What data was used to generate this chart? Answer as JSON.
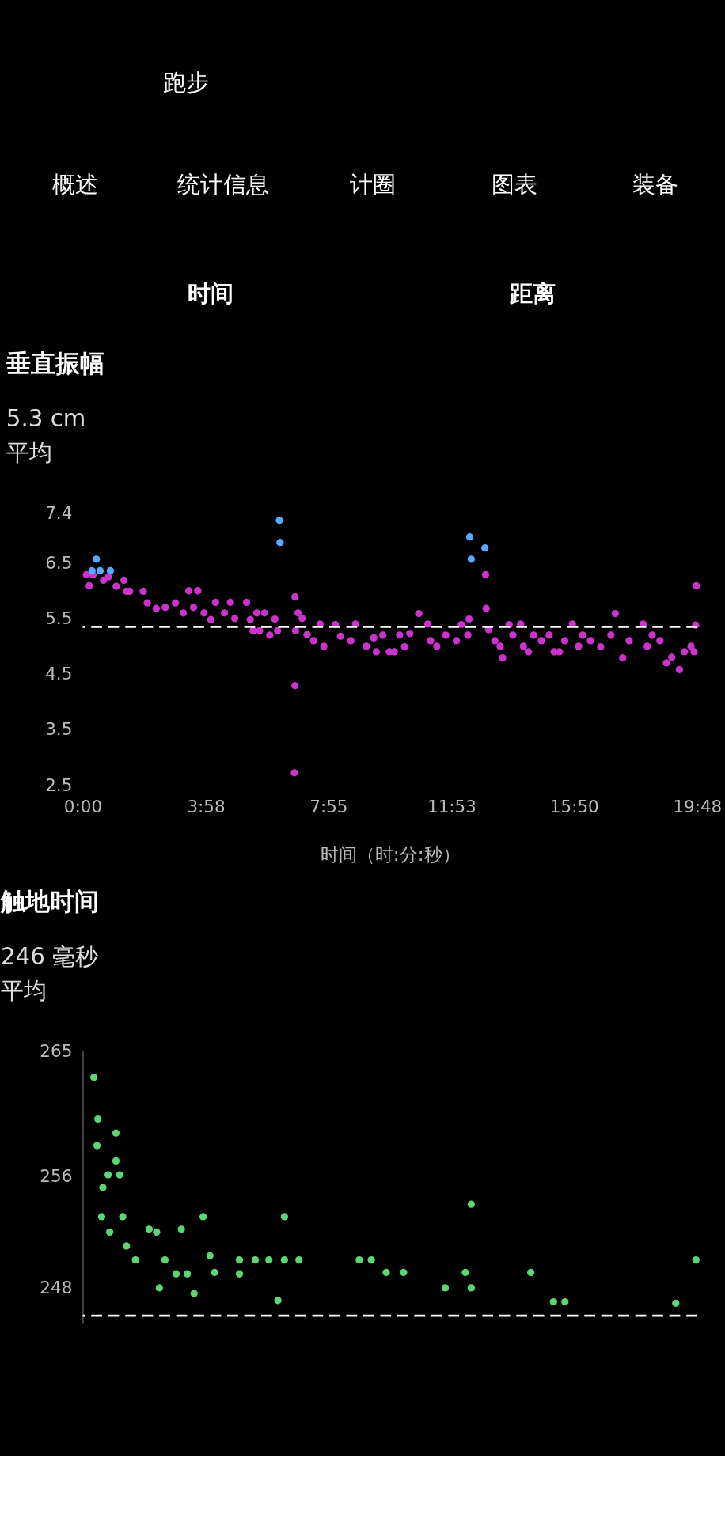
{
  "chart_data": [
    {
      "type": "scatter",
      "title": "垂直振幅",
      "xlabel": "时间（时:分:秒）",
      "annotations": [
        "跑步",
        "概述",
        "统计信息",
        "计圈",
        "图表",
        "装备",
        "时间",
        "距离",
        "5.3 cm",
        "平均"
      ],
      "xlim": [
        0,
        19.8
      ],
      "xticks": [
        {
          "value": 0,
          "label": "0:00"
        },
        {
          "value": 3.967,
          "label": "3:58"
        },
        {
          "value": 7.917,
          "label": "7:55"
        },
        {
          "value": 11.883,
          "label": "11:53"
        },
        {
          "value": 15.833,
          "label": "15:50"
        },
        {
          "value": 19.8,
          "label": "19:48"
        }
      ],
      "ylim": [
        2.5,
        7.4
      ],
      "yticks": [
        2.5,
        3.5,
        4.5,
        5.5,
        6.5,
        7.4
      ],
      "marker": "circle",
      "ref_lines": [
        {
          "axis": "y",
          "value": 5.35,
          "color": "#ffffff",
          "line_style": "dashed"
        }
      ],
      "series": [
        {
          "color": "#cc33cc",
          "x": [
            0.12,
            0.21,
            0.33,
            0.67,
            0.83,
            1.08,
            1.33,
            1.41,
            1.51,
            1.95,
            2.08,
            2.37,
            2.66,
            2.99,
            3.24,
            3.42,
            3.71,
            3.57,
            3.91,
            4.13,
            4.28,
            4.57,
            4.76,
            4.9,
            5.28,
            5.4,
            5.61,
            5.86,
            5.49,
            5.7,
            6.03,
            6.19,
            6.28,
            6.84,
            6.84,
            6.82,
            6.94,
            7.07,
            6.86,
            7.23,
            7.44,
            7.65,
            7.77,
            8.14,
            8.31,
            8.64,
            8.79,
            9.14,
            9.38,
            9.46,
            9.67,
            9.88,
            10.04,
            10.21,
            10.37,
            10.54,
            10.83,
            11.12,
            11.21,
            11.41,
            11.7,
            12.04,
            12.2,
            12.41,
            12.45,
            12.98,
            13.0,
            13.08,
            13.28,
            13.45,
            13.53,
            13.74,
            13.86,
            14.11,
            14.2,
            14.36,
            14.53,
            14.78,
            15.03,
            15.19,
            15.36,
            15.53,
            15.78,
            15.98,
            16.11,
            16.36,
            16.69,
            17.02,
            17.16,
            17.4,
            17.61,
            18.06,
            18.19,
            18.35,
            18.6,
            18.81,
            18.98,
            19.23,
            19.39,
            19.6,
            19.7,
            19.75,
            19.77
          ],
          "values": [
            6.29,
            6.09,
            6.29,
            6.19,
            6.25,
            6.08,
            6.19,
            5.99,
            5.99,
            5.99,
            5.78,
            5.68,
            5.7,
            5.78,
            5.6,
            6.0,
            6.0,
            5.7,
            5.6,
            5.48,
            5.79,
            5.6,
            5.79,
            5.5,
            5.79,
            5.48,
            5.6,
            5.6,
            5.28,
            5.28,
            5.2,
            5.49,
            5.28,
            5.89,
            4.29,
            2.72,
            5.6,
            5.5,
            5.28,
            5.21,
            5.1,
            5.4,
            5.0,
            5.39,
            5.18,
            5.1,
            5.4,
            5.0,
            5.15,
            4.9,
            5.2,
            4.9,
            4.9,
            5.2,
            4.99,
            5.23,
            5.59,
            5.4,
            5.1,
            5.0,
            5.2,
            5.1,
            5.39,
            5.2,
            5.49,
            6.29,
            5.68,
            5.3,
            5.1,
            5.0,
            4.79,
            5.39,
            5.2,
            5.4,
            5.0,
            4.9,
            5.2,
            5.1,
            5.2,
            4.9,
            4.9,
            5.1,
            5.4,
            5.0,
            5.2,
            5.1,
            4.99,
            5.2,
            5.59,
            4.79,
            5.1,
            5.4,
            5.0,
            5.2,
            5.1,
            4.7,
            4.8,
            4.58,
            4.9,
            5.0,
            4.9,
            5.38,
            6.09
          ]
        },
        {
          "color": "#55aaff",
          "x": [
            0.3,
            0.44,
            0.56,
            0.89,
            6.34,
            6.36,
            12.47,
            12.52,
            12.96
          ],
          "values": [
            6.36,
            6.57,
            6.36,
            6.36,
            7.27,
            6.87,
            6.97,
            6.57,
            6.77
          ]
        }
      ]
    },
    {
      "type": "scatter",
      "title": "触地时间",
      "annotations": [
        "246 毫秒",
        "平均"
      ],
      "xlim": [
        0,
        19.8
      ],
      "ylim": [
        245.5,
        265
      ],
      "yticks": [
        248,
        256,
        265
      ],
      "tick_labels": "y",
      "marker": "circle",
      "ref_lines": [
        {
          "axis": "y",
          "value": 246,
          "color": "#ffffff",
          "line_style": "dashed"
        }
      ],
      "series": [
        {
          "color": "#5cd672",
          "x": [
            0.36,
            0.49,
            0.46,
            0.65,
            0.82,
            1.07,
            1.07,
            1.19,
            0.61,
            0.87,
            1.29,
            1.41,
            1.7,
            2.14,
            2.38,
            2.47,
            2.65,
            3.01,
            3.18,
            3.37,
            3.59,
            3.88,
            4.1,
            4.25,
            5.05,
            5.05,
            5.56,
            6.0,
            6.5,
            6.5,
            6.97,
            6.29,
            8.91,
            9.3,
            9.78,
            10.34,
            11.68,
            12.33,
            12.52,
            12.52,
            14.44,
            15.17,
            15.54,
            19.11,
            19.76
          ],
          "values": [
            263.1,
            260.1,
            258.2,
            255.2,
            256.1,
            259.1,
            257.1,
            256.1,
            253.1,
            252.0,
            253.1,
            251.0,
            250.0,
            252.2,
            252.0,
            248.0,
            250.0,
            249.0,
            252.2,
            249.0,
            247.6,
            253.1,
            250.3,
            249.1,
            250.0,
            249.0,
            250.0,
            250.0,
            253.1,
            250.0,
            250.0,
            247.1,
            250.0,
            250.0,
            249.1,
            249.1,
            248.0,
            249.1,
            254.0,
            248.0,
            249.1,
            247.0,
            247.0,
            246.9,
            250.0
          ]
        }
      ]
    }
  ]
}
